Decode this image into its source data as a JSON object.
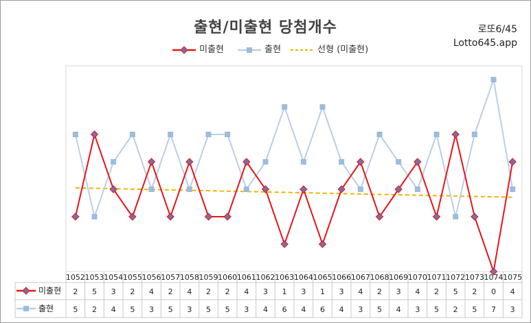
{
  "header": {
    "title": "출현/미출현 당첨개수",
    "brand_line1": "로또6/45",
    "brand_line2": "Lotto645.app"
  },
  "colors": {
    "unappeared": "#e8141a",
    "unappeared_marker": "#7a6fa6",
    "appeared": "#b9cfe6",
    "appeared_marker": "#9fbbdd",
    "trend": "#f0b400"
  },
  "chart_data": {
    "type": "line",
    "categories": [
      "1052",
      "1053",
      "1054",
      "1055",
      "1056",
      "1057",
      "1058",
      "1059",
      "1060",
      "1061",
      "1062",
      "1063",
      "1064",
      "1065",
      "1066",
      "1067",
      "1068",
      "1069",
      "1070",
      "1071",
      "1072",
      "1073",
      "1074",
      "1075"
    ],
    "series": [
      {
        "name": "미출현",
        "values": [
          2,
          5,
          3,
          2,
          4,
          2,
          4,
          2,
          2,
          4,
          3,
          1,
          3,
          1,
          3,
          4,
          2,
          3,
          4,
          2,
          5,
          2,
          0,
          4
        ]
      },
      {
        "name": "출현",
        "values": [
          5,
          2,
          4,
          5,
          3,
          5,
          3,
          5,
          5,
          3,
          4,
          6,
          4,
          6,
          4,
          3,
          5,
          4,
          3,
          5,
          2,
          5,
          7,
          3
        ]
      }
    ],
    "trendline": {
      "name": "선형 (미출현)",
      "start": 3.05,
      "end": 2.71
    },
    "ylim": [
      0,
      7.5
    ],
    "grid": false,
    "legend_position": "top"
  }
}
